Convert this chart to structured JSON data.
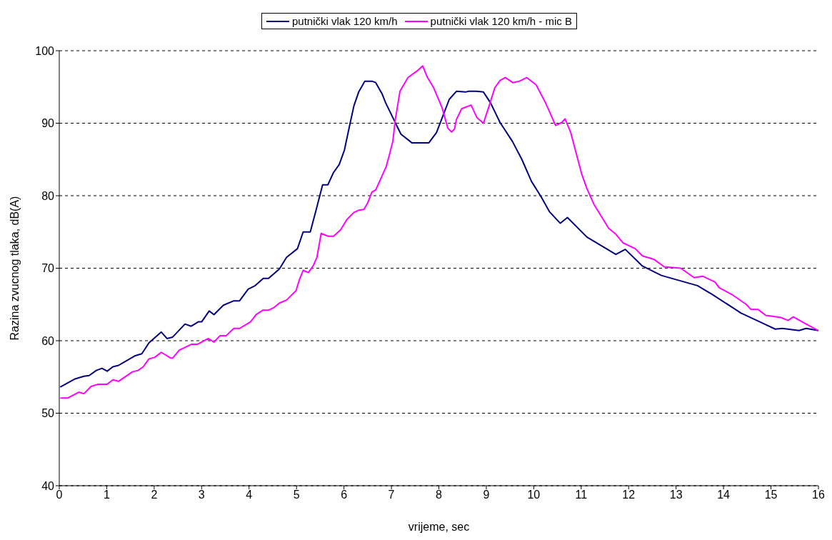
{
  "chart_data": {
    "type": "line",
    "xlabel": "vrijeme, sec",
    "ylabel": "Razina zvucnog tlaka, dB(A)",
    "xlim": [
      0,
      16
    ],
    "xticks": [
      0,
      1,
      2,
      3,
      4,
      5,
      6,
      7,
      8,
      9,
      10,
      11,
      12,
      13,
      14,
      15,
      16
    ],
    "ylim": [
      40,
      100
    ],
    "yticks": [
      40,
      50,
      60,
      70,
      80,
      90,
      100
    ],
    "grid": "y",
    "legend": "top",
    "marker": "none",
    "line_style": "solid",
    "series": [
      {
        "name": "putnički vlak 120 km/h",
        "color": "#000080",
        "x": [
          0.02,
          0.32,
          0.52,
          0.63,
          0.78,
          0.9,
          1.01,
          1.13,
          1.25,
          1.59,
          1.74,
          1.89,
          2.15,
          2.27,
          2.39,
          2.65,
          2.78,
          2.93,
          3.0,
          3.16,
          3.26,
          3.46,
          3.68,
          3.8,
          3.98,
          4.13,
          4.3,
          4.41,
          4.64,
          4.79,
          5.02,
          5.14,
          5.29,
          5.4,
          5.55,
          5.66,
          5.78,
          5.9,
          6.01,
          6.12,
          6.21,
          6.31,
          6.44,
          6.59,
          6.67,
          6.8,
          6.88,
          7.2,
          7.43,
          7.79,
          7.95,
          8.22,
          8.37,
          8.56,
          8.63,
          8.79,
          8.94,
          9.09,
          9.29,
          9.55,
          9.75,
          9.95,
          10.16,
          10.33,
          10.56,
          10.71,
          11.12,
          11.73,
          11.93,
          12.29,
          12.69,
          13.45,
          13.76,
          14.37,
          14.83,
          15.09,
          15.24,
          15.59,
          15.74,
          16
        ],
        "values": [
          53.6,
          54.7,
          55.1,
          55.2,
          55.9,
          56.2,
          55.8,
          56.4,
          56.6,
          57.9,
          58.2,
          59.7,
          61.2,
          60.3,
          60.5,
          62.3,
          62.0,
          62.6,
          62.6,
          64.1,
          63.6,
          64.9,
          65.5,
          65.5,
          67.1,
          67.6,
          68.6,
          68.6,
          69.9,
          71.5,
          72.7,
          75.0,
          75.0,
          77.7,
          81.5,
          81.5,
          83.2,
          84.3,
          86.3,
          89.7,
          92.4,
          94.3,
          95.8,
          95.8,
          95.6,
          94.1,
          92.8,
          88.5,
          87.3,
          87.3,
          88.7,
          93.3,
          94.4,
          94.3,
          94.4,
          94.4,
          94.3,
          92.8,
          90.1,
          87.5,
          85.0,
          82.0,
          79.8,
          77.8,
          76.2,
          77.0,
          74.3,
          71.9,
          72.6,
          70.3,
          69.0,
          67.6,
          66.4,
          63.8,
          62.4,
          61.6,
          61.7,
          61.4,
          61.7,
          61.4
        ]
      },
      {
        "name": "putnički vlak 120 km/h - mic B",
        "color": "#ff00ff",
        "x": [
          0.02,
          0.18,
          0.41,
          0.52,
          0.67,
          0.82,
          1.01,
          1.13,
          1.25,
          1.54,
          1.66,
          1.77,
          1.89,
          2.01,
          2.15,
          2.35,
          2.39,
          2.53,
          2.78,
          2.91,
          3.14,
          3.26,
          3.39,
          3.52,
          3.68,
          3.8,
          4.03,
          4.15,
          4.29,
          4.41,
          4.53,
          4.64,
          4.79,
          4.99,
          5.06,
          5.14,
          5.25,
          5.35,
          5.43,
          5.52,
          5.67,
          5.78,
          5.93,
          6.06,
          6.21,
          6.31,
          6.42,
          6.5,
          6.59,
          6.67,
          6.8,
          6.89,
          6.96,
          7.03,
          7.08,
          7.18,
          7.35,
          7.54,
          7.66,
          7.76,
          7.89,
          7.96,
          8.07,
          8.19,
          8.27,
          8.33,
          8.37,
          8.48,
          8.68,
          8.8,
          8.94,
          9.06,
          9.18,
          9.29,
          9.4,
          9.56,
          9.7,
          9.85,
          10.05,
          10.25,
          10.46,
          10.59,
          10.66,
          10.78,
          11.01,
          11.12,
          11.27,
          11.58,
          11.73,
          11.88,
          12.14,
          12.29,
          12.54,
          12.75,
          13.1,
          13.38,
          13.56,
          13.82,
          13.91,
          14.17,
          14.48,
          14.58,
          14.73,
          14.89,
          15.21,
          15.36,
          15.47,
          15.74,
          16
        ],
        "values": [
          52.1,
          52.1,
          52.9,
          52.7,
          53.7,
          54.0,
          54.0,
          54.6,
          54.4,
          55.7,
          55.9,
          56.4,
          57.5,
          57.7,
          58.4,
          57.6,
          57.6,
          58.7,
          59.5,
          59.5,
          60.3,
          59.8,
          60.7,
          60.7,
          61.7,
          61.7,
          62.6,
          63.6,
          64.2,
          64.2,
          64.6,
          65.2,
          65.6,
          66.9,
          68.4,
          69.7,
          69.4,
          70.3,
          71.5,
          74.8,
          74.4,
          74.4,
          75.3,
          76.7,
          77.7,
          78.0,
          78.1,
          79.0,
          80.5,
          80.8,
          82.7,
          84.0,
          85.7,
          87.5,
          90.4,
          94.4,
          96.3,
          97.2,
          97.9,
          96.3,
          94.9,
          93.8,
          92.1,
          89.3,
          88.8,
          89.2,
          90.5,
          92.0,
          92.5,
          90.8,
          90.0,
          92.4,
          94.9,
          95.9,
          96.3,
          95.6,
          95.8,
          96.3,
          95.3,
          92.8,
          89.7,
          90.1,
          90.6,
          88.7,
          83.0,
          81.0,
          78.8,
          75.5,
          74.7,
          73.5,
          72.7,
          71.7,
          71.2,
          70.2,
          70.0,
          68.7,
          68.9,
          68.1,
          67.3,
          66.4,
          65.0,
          64.3,
          64.3,
          63.5,
          63.2,
          62.8,
          63.3,
          62.3,
          61.4
        ]
      }
    ]
  }
}
